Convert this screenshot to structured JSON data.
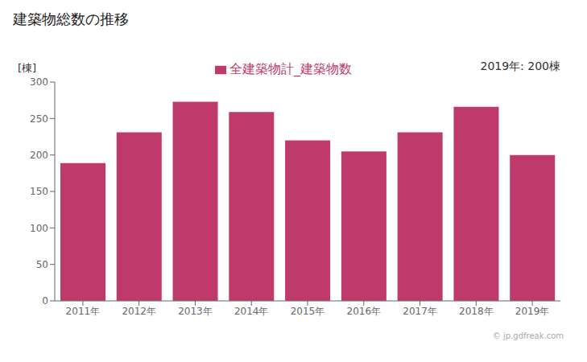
{
  "chart_data": {
    "type": "bar",
    "title": "建築物総数の推移",
    "ylabel": "[棟]",
    "annotations": [
      "2019年: 200棟",
      "© jp.gdfreak.com"
    ],
    "categories": [
      "2011年",
      "2012年",
      "2013年",
      "2014年",
      "2015年",
      "2016年",
      "2017年",
      "2018年",
      "2019年"
    ],
    "series": [
      {
        "name": "全建築物計_建築物数",
        "color": "#c0396b",
        "values": [
          189,
          231,
          273,
          259,
          220,
          205,
          231,
          266,
          200
        ]
      }
    ],
    "ylim": [
      0,
      300
    ],
    "yticks": [
      0,
      50,
      100,
      150,
      200,
      250,
      300
    ],
    "grid": false,
    "legend": "top"
  }
}
